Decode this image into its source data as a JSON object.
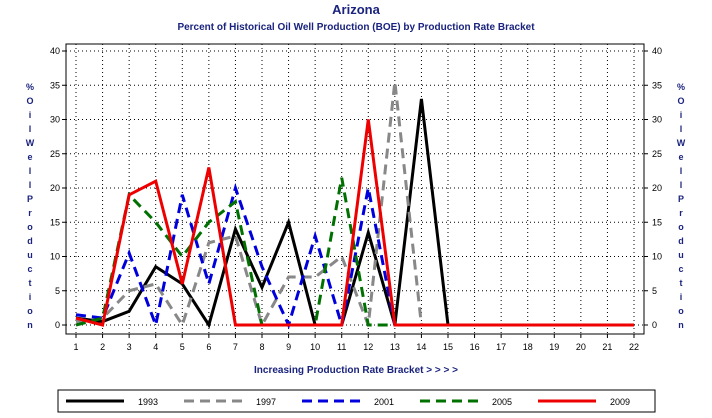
{
  "chart_data": {
    "type": "line",
    "title": "Arizona",
    "subtitle": "Percent of Historical Oil Well Production (BOE) by Production Rate Bracket",
    "xlabel": "Increasing Production Rate Bracket  > > > >",
    "ylabel": "% Oil Well Production",
    "x": [
      1,
      2,
      3,
      4,
      5,
      6,
      7,
      8,
      9,
      10,
      11,
      12,
      13,
      14,
      15,
      16,
      17,
      18,
      19,
      20,
      21,
      22
    ],
    "xlim": [
      1,
      22
    ],
    "ylim": [
      0,
      40
    ],
    "yticks": [
      0,
      5,
      10,
      15,
      20,
      25,
      30,
      35,
      40
    ],
    "grid": true,
    "legend_position": "bottom",
    "series": [
      {
        "name": "1993",
        "color": "#000000",
        "dash": "solid",
        "values": [
          1.0,
          0.5,
          2.0,
          8.5,
          6.0,
          0,
          14.0,
          5.5,
          15.0,
          0,
          0,
          13.5,
          0,
          33.0,
          0,
          0,
          0,
          0,
          0,
          0,
          0,
          0
        ]
      },
      {
        "name": "1997",
        "color": "#888888",
        "dash": "dash",
        "values": [
          0.5,
          1.0,
          5.0,
          6.0,
          0,
          12.0,
          13.0,
          0,
          7.0,
          7.0,
          10.0,
          0,
          35.5,
          0,
          0,
          0,
          0,
          0,
          0,
          0,
          0,
          0
        ]
      },
      {
        "name": "2001",
        "color": "#0000dd",
        "dash": "dash",
        "values": [
          1.5,
          1.0,
          10.5,
          0,
          19.0,
          6.0,
          20.0,
          8.5,
          0,
          13.0,
          0,
          20.0,
          0,
          0,
          0,
          0,
          0,
          0,
          0,
          0,
          0,
          0
        ]
      },
      {
        "name": "2005",
        "color": "#007000",
        "dash": "dash",
        "values": [
          0,
          1.0,
          19.0,
          15.0,
          10.0,
          15.0,
          18.0,
          0,
          0,
          0,
          21.5,
          0,
          0,
          0,
          0,
          0,
          0,
          0,
          0,
          0,
          0,
          0
        ]
      },
      {
        "name": "2009",
        "color": "#ee0000",
        "dash": "solid",
        "values": [
          1.0,
          0,
          19.0,
          21.0,
          6.0,
          23.0,
          0,
          0,
          0,
          0,
          0,
          30.0,
          0,
          0,
          0,
          0,
          0,
          0,
          0,
          0,
          0,
          0
        ]
      }
    ]
  }
}
